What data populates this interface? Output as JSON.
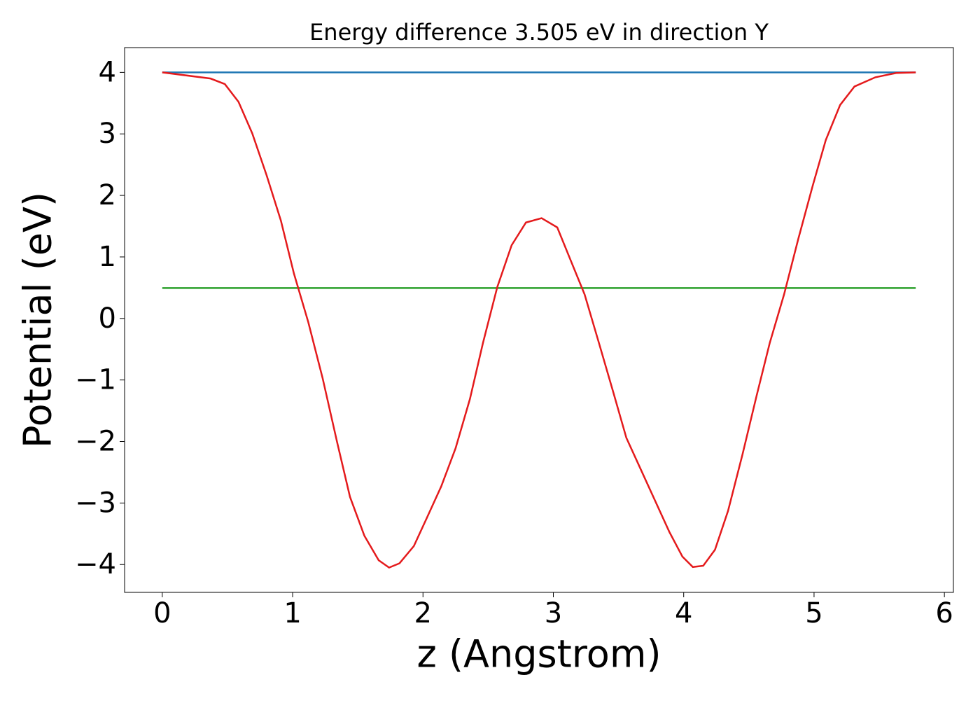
{
  "chart_data": {
    "type": "line",
    "title": "Energy difference 3.505 eV in direction Y",
    "x_label": "z (Angstrom)",
    "y_label": "Potential (eV)",
    "xlim": [
      -0.289,
      6.069
    ],
    "ylim": [
      -4.4525,
      4.4025
    ],
    "xticks": [
      0,
      1,
      2,
      3,
      4,
      5,
      6
    ],
    "yticks": [
      {
        "value": -4,
        "label": "−4"
      },
      {
        "value": -3,
        "label": "−3"
      },
      {
        "value": -2,
        "label": "−2"
      },
      {
        "value": -1,
        "label": "−1"
      },
      0,
      1,
      2,
      3,
      4
    ],
    "grid": false,
    "series": [
      {
        "color": "#1f77b4",
        "x": [
          0,
          5.78
        ],
        "values": [
          4.0,
          4.0
        ]
      },
      {
        "color": "#2ca02c",
        "x": [
          0,
          5.78
        ],
        "values": [
          0.495,
          0.495
        ]
      },
      {
        "color": "#e41a1c",
        "x": [
          0,
          0.37,
          0.48,
          0.585,
          0.69,
          0.8,
          0.91,
          1.01,
          1.12,
          1.23,
          1.34,
          1.44,
          1.55,
          1.66,
          1.74,
          1.82,
          1.93,
          2.03,
          2.14,
          2.25,
          2.36,
          2.46,
          2.57,
          2.68,
          2.79,
          2.91,
          3.03,
          3.13,
          3.24,
          3.35,
          3.46,
          3.56,
          3.67,
          3.78,
          3.89,
          3.99,
          4.07,
          4.15,
          4.24,
          4.34,
          4.45,
          4.56,
          4.66,
          4.77,
          4.88,
          4.99,
          5.09,
          5.2,
          5.31,
          5.47,
          5.63,
          5.78
        ],
        "values": [
          4.0,
          3.9,
          3.81,
          3.52,
          3.01,
          2.33,
          1.59,
          0.73,
          -0.06,
          -0.97,
          -2.0,
          -2.9,
          -3.53,
          -3.93,
          -4.05,
          -3.98,
          -3.7,
          -3.24,
          -2.73,
          -2.11,
          -1.31,
          -0.4,
          0.51,
          1.19,
          1.56,
          1.63,
          1.48,
          0.96,
          0.39,
          -0.4,
          -1.2,
          -1.94,
          -2.45,
          -2.96,
          -3.47,
          -3.87,
          -4.04,
          -4.02,
          -3.76,
          -3.13,
          -2.22,
          -1.25,
          -0.4,
          0.39,
          1.3,
          2.16,
          2.9,
          3.47,
          3.77,
          3.92,
          3.99,
          4.0
        ]
      }
    ]
  }
}
